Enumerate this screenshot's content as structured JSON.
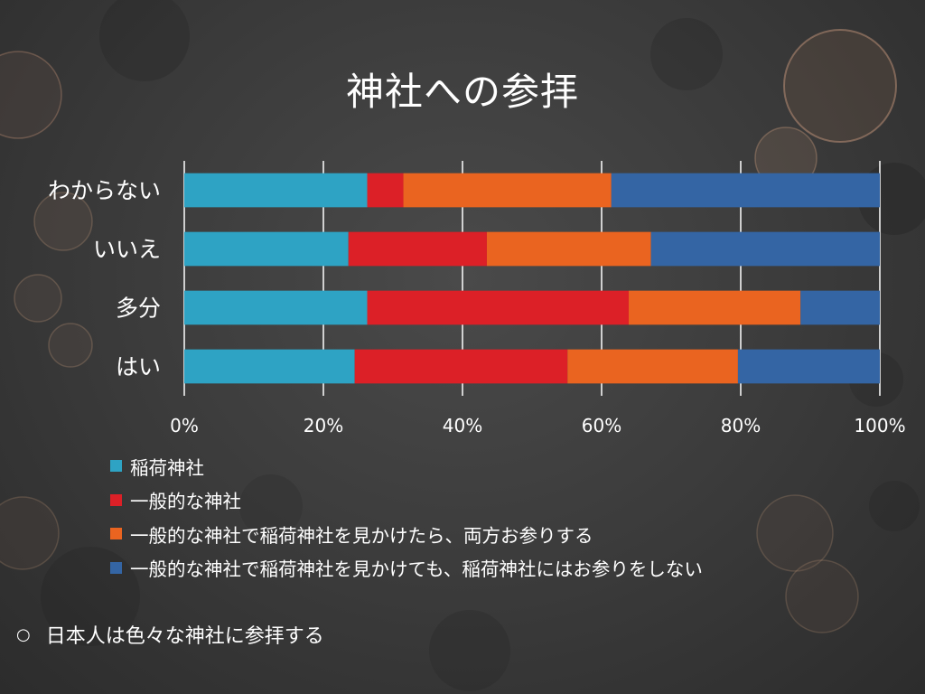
{
  "slide": {
    "title": "神社への参拝",
    "bullet_mark": "○",
    "bullet_text": "日本人は色々な神社に参拝する"
  },
  "chart_data": {
    "type": "bar",
    "orientation": "horizontal",
    "stacked": "percent",
    "categories": [
      "はい",
      "多分",
      "いいえ",
      "わからない"
    ],
    "series": [
      {
        "name": "稲荷神社",
        "color": "#2ea3c4",
        "values": [
          24.5,
          26.3,
          23.6,
          26.3
        ]
      },
      {
        "name": "一般的な神社",
        "color": "#dc2027",
        "values": [
          30.6,
          37.6,
          19.9,
          5.2
        ]
      },
      {
        "name": "一般的な神社で稲荷神社を見かけたら、両方お参りする",
        "color": "#ea6420",
        "values": [
          24.5,
          24.7,
          23.6,
          29.9
        ]
      },
      {
        "name": "一般的な神社で稲荷神社を見かけても、稲荷神社にはお参りをしない",
        "color": "#3465a4",
        "values": [
          20.4,
          11.4,
          32.9,
          38.6
        ]
      }
    ],
    "xlim": [
      0,
      100
    ],
    "x_ticks": [
      "0%",
      "20%",
      "40%",
      "60%",
      "80%",
      "100%"
    ],
    "grid": "vertical",
    "legend_position": "bottom-left"
  }
}
